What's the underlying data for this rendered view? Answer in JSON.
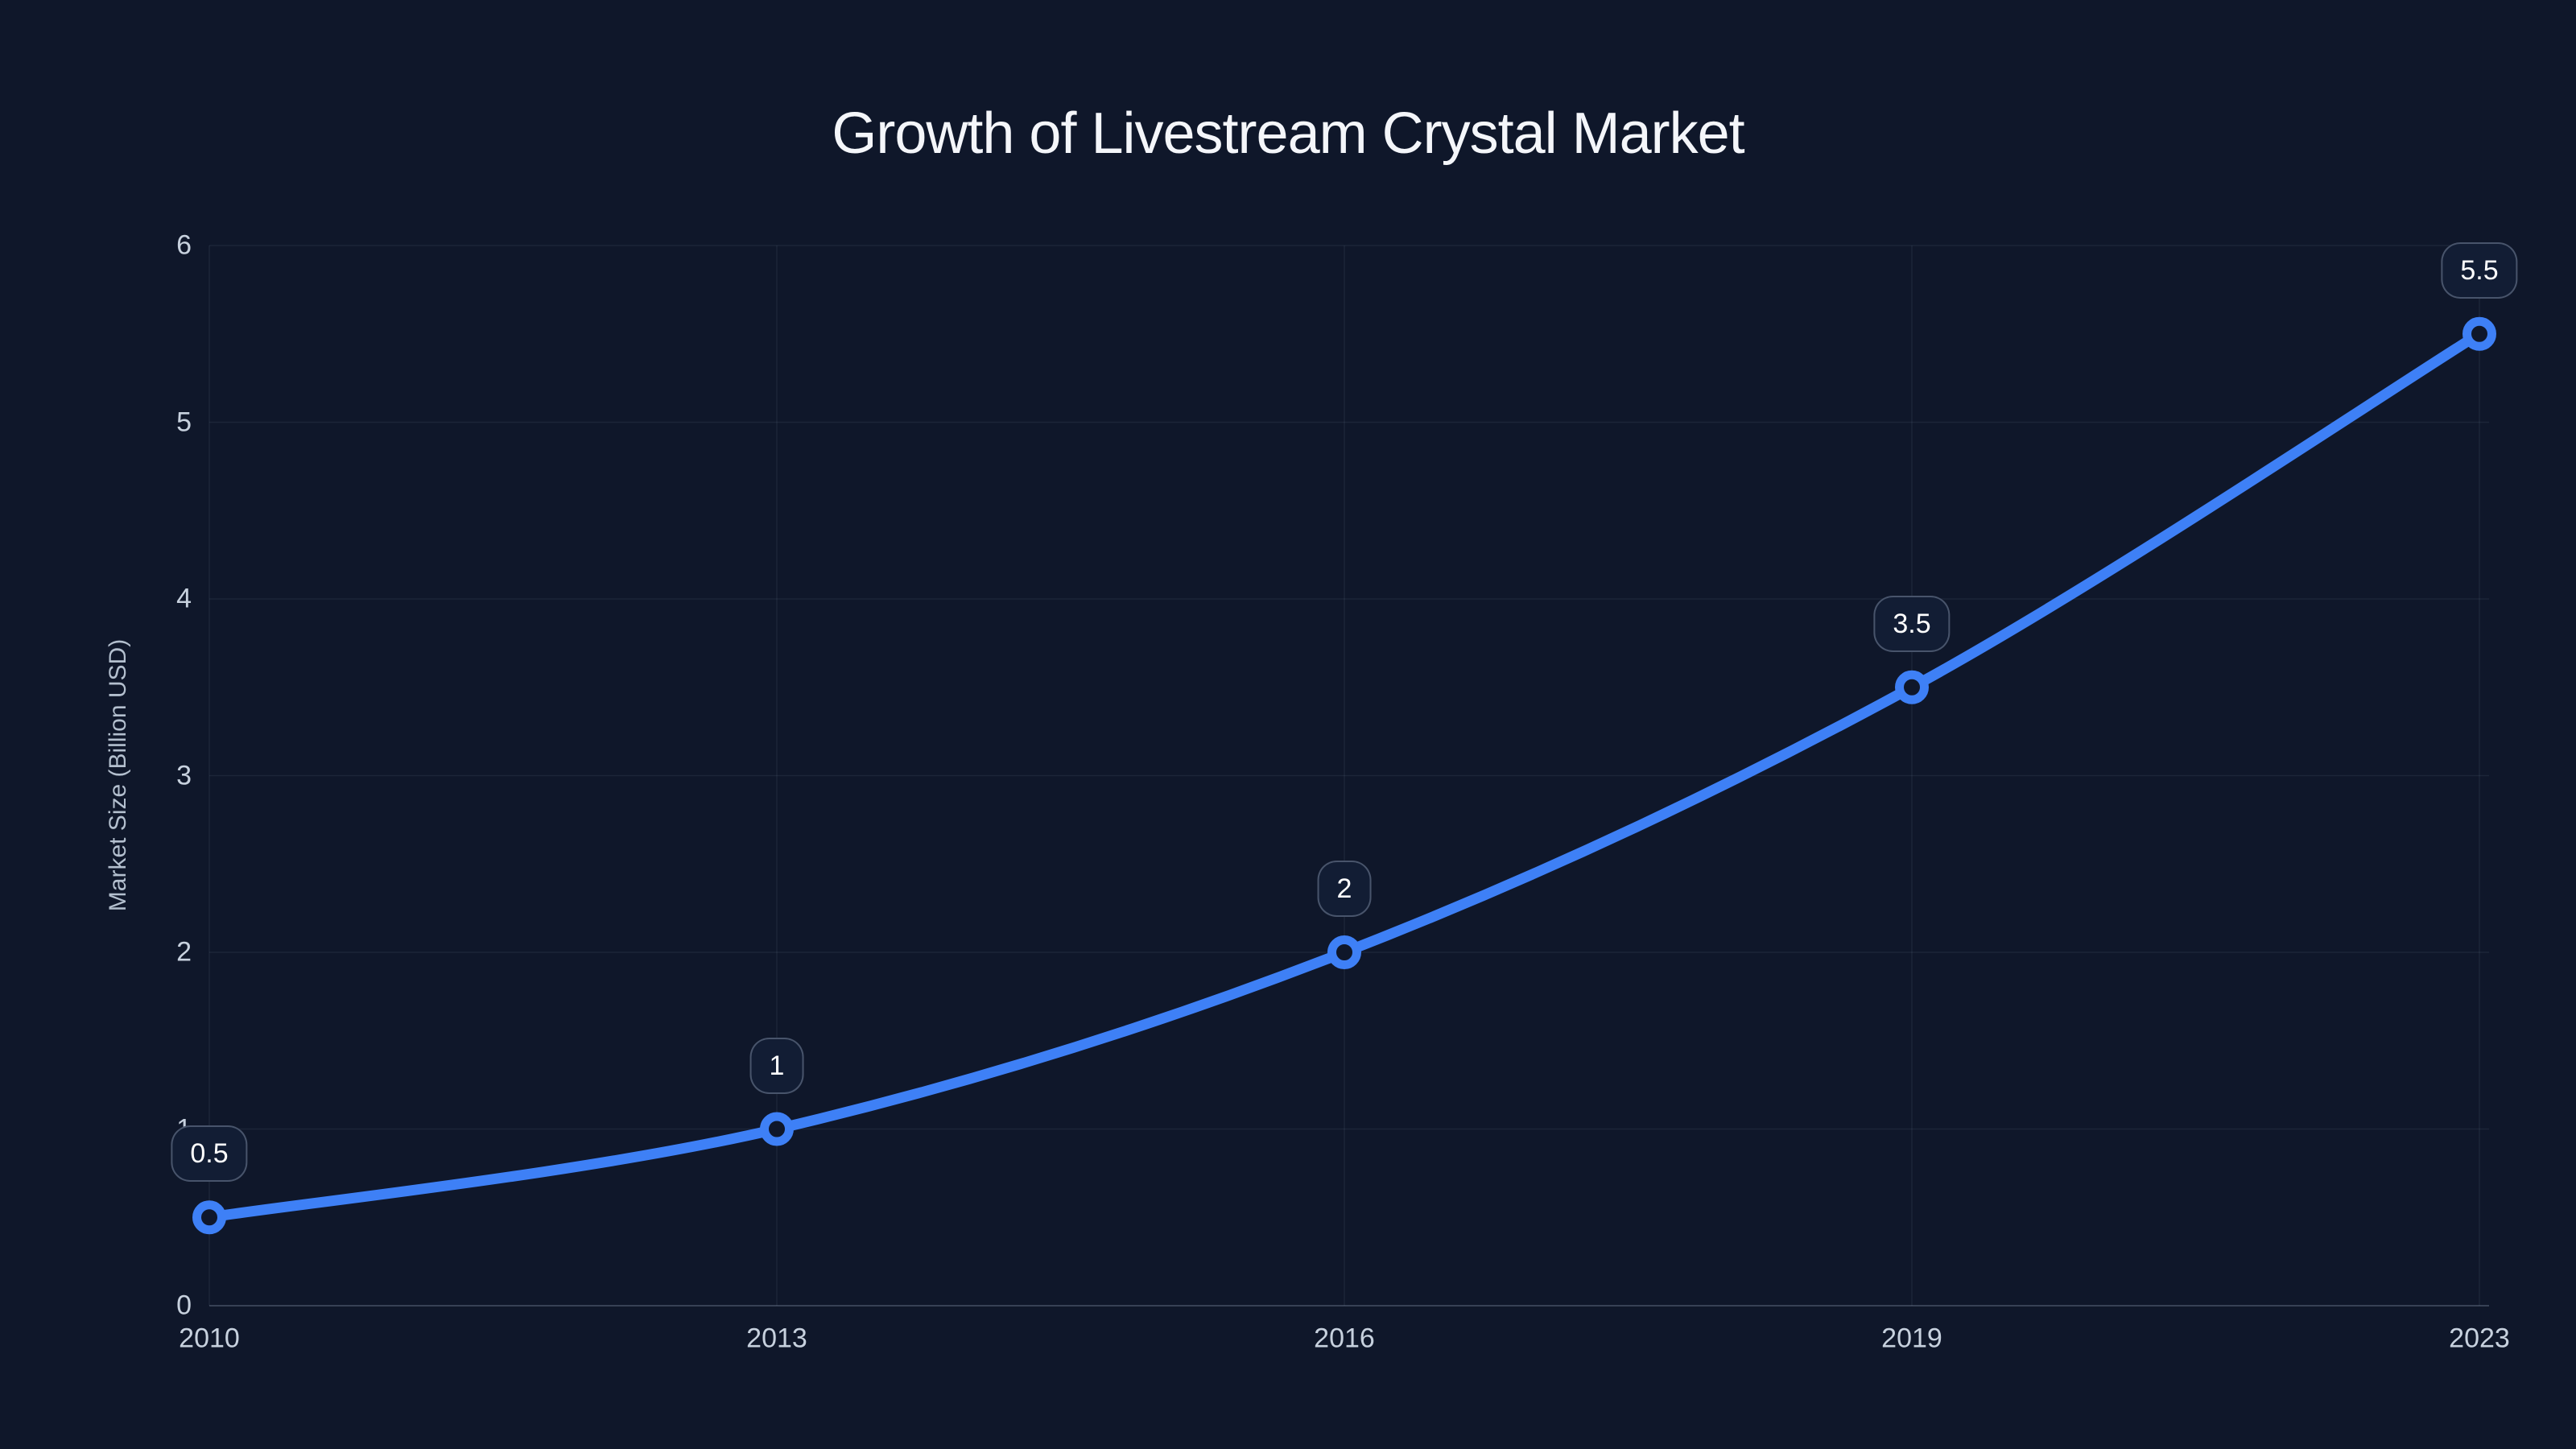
{
  "title": "Growth of Livestream Crystal Market",
  "colors": {
    "background": "#0f172a",
    "accent_blue": "#3e80f6",
    "grid": "rgba(148,163,184,0.10)",
    "axis_line": "rgba(148,163,184,0.30)",
    "tick_label": "#c7d1de",
    "axis_title": "#b3bfce",
    "title_text": "#f4f6fa",
    "badge_fill": "#121d34",
    "badge_border": "rgba(148,163,184,0.42)",
    "badge_text": "#ffffff"
  },
  "chart_data": {
    "type": "line",
    "title": "Growth of Livestream Crystal Market",
    "categories": [
      "2010",
      "2013",
      "2016",
      "2019",
      "2023"
    ],
    "series": [
      {
        "name": "Market Size",
        "values": [
          0.5,
          1,
          2,
          3.5,
          5.5
        ]
      }
    ],
    "point_labels": [
      "0.5",
      "1",
      "2",
      "3.5",
      "5.5"
    ],
    "xlabel": "",
    "ylabel": "Market Size (Billion USD)",
    "ylim": [
      0,
      6
    ],
    "yticks": [
      0,
      1,
      2,
      3,
      4,
      5,
      6
    ],
    "grid": true,
    "legend": false,
    "line_smooth": true,
    "marker": "open-circle"
  }
}
